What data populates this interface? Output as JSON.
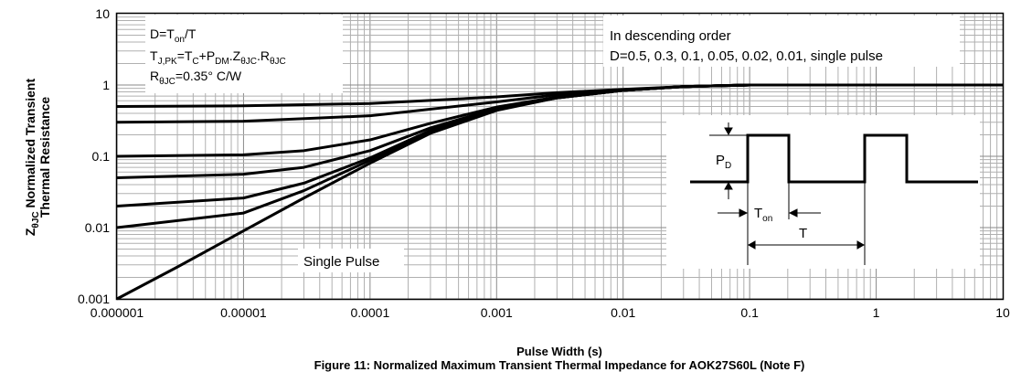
{
  "chart_data": {
    "type": "line",
    "xscale": "log",
    "yscale": "log",
    "xlim": [
      1e-06,
      10
    ],
    "ylim": [
      0.001,
      10
    ],
    "grid": true,
    "x_tick_labels": [
      "0.000001",
      "0.00001",
      "0.0001",
      "0.001",
      "0.01",
      "0.1",
      "1",
      "10"
    ],
    "x_tick_values": [
      1e-06,
      1e-05,
      0.0001,
      0.001,
      0.01,
      0.1,
      1,
      10
    ],
    "y_tick_labels": [
      "0.001",
      "0.01",
      "0.1",
      "1",
      "10"
    ],
    "y_tick_values": [
      0.001,
      0.01,
      0.1,
      1,
      10
    ],
    "ylabel_line1": "Normalized Transient",
    "ylabel_line2": "Thermal Resistance",
    "ylabel_prefix": "Z",
    "ylabel_sub": "θJC",
    "xlabel": "Pulse Width (s)",
    "caption": "Figure 11: Normalized Maximum Transient Thermal Impedance for AOK27S60L (Note F)",
    "series": [
      {
        "duty": 0.5,
        "x": [
          1e-06,
          1e-05,
          0.0001,
          0.001,
          0.003,
          0.01,
          0.03,
          0.1,
          1,
          10
        ],
        "y": [
          0.5,
          0.51,
          0.55,
          0.68,
          0.78,
          0.87,
          0.95,
          1.0,
          1.0,
          1.0
        ]
      },
      {
        "duty": 0.3,
        "x": [
          1e-06,
          1e-05,
          0.0001,
          0.001,
          0.003,
          0.01,
          0.03,
          0.1,
          1,
          10
        ],
        "y": [
          0.3,
          0.31,
          0.37,
          0.58,
          0.73,
          0.85,
          0.95,
          1.0,
          1.0,
          1.0
        ]
      },
      {
        "duty": 0.1,
        "x": [
          1e-06,
          1e-05,
          3e-05,
          0.0001,
          0.0003,
          0.001,
          0.003,
          0.01,
          0.03,
          0.1,
          1,
          10
        ],
        "y": [
          0.1,
          0.105,
          0.12,
          0.17,
          0.29,
          0.49,
          0.68,
          0.84,
          0.95,
          1.0,
          1.0,
          1.0
        ]
      },
      {
        "duty": 0.05,
        "x": [
          1e-06,
          1e-05,
          3e-05,
          0.0001,
          0.0003,
          0.001,
          0.003,
          0.01,
          0.03,
          0.1,
          1,
          10
        ],
        "y": [
          0.05,
          0.056,
          0.07,
          0.12,
          0.25,
          0.47,
          0.67,
          0.84,
          0.95,
          1.0,
          1.0,
          1.0
        ]
      },
      {
        "duty": 0.02,
        "x": [
          1e-06,
          1e-05,
          3e-05,
          0.0001,
          0.0003,
          0.001,
          0.003,
          0.01,
          0.03,
          0.1,
          1,
          10
        ],
        "y": [
          0.02,
          0.026,
          0.042,
          0.095,
          0.23,
          0.46,
          0.66,
          0.84,
          0.95,
          1.0,
          1.0,
          1.0
        ]
      },
      {
        "duty": 0.01,
        "x": [
          1e-06,
          1e-05,
          3e-05,
          0.0001,
          0.0003,
          0.001,
          0.003,
          0.01,
          0.03,
          0.1,
          1,
          10
        ],
        "y": [
          0.01,
          0.016,
          0.033,
          0.088,
          0.22,
          0.45,
          0.66,
          0.84,
          0.95,
          1.0,
          1.0,
          1.0
        ]
      },
      {
        "duty": 0,
        "x": [
          1e-06,
          3e-06,
          1e-05,
          3e-05,
          0.0001,
          0.0003,
          0.001,
          0.003,
          0.01,
          0.03,
          0.1,
          1,
          10
        ],
        "y": [
          0.001,
          0.0028,
          0.009,
          0.026,
          0.08,
          0.21,
          0.44,
          0.66,
          0.84,
          0.95,
          1.0,
          1.0,
          1.0
        ]
      }
    ],
    "annotations": {
      "formula_d": "D=T",
      "formula_d_sub": "on",
      "formula_d_tail": "/T",
      "formula_tj": "T",
      "formula_tj_sub": "J,PK",
      "formula_tj_a": "=T",
      "formula_tj_a_sub": "C",
      "formula_tj_b": "+P",
      "formula_tj_b_sub": "DM",
      "formula_tj_c": ".Z",
      "formula_tj_c_sub": "θJC",
      "formula_tj_d": ".R",
      "formula_tj_d_sub": "θJC",
      "formula_r": "R",
      "formula_r_sub": "θJC",
      "formula_r_tail": "=0.35° C/W",
      "order_title": "In descending order",
      "order_list": "D=0.5, 0.3, 0.1, 0.05, 0.02, 0.01, single pulse",
      "single_pulse": "Single Pulse",
      "pd_label": "P",
      "pd_sub": "D",
      "ton_label": "T",
      "ton_sub": "on",
      "t_label": "T"
    }
  }
}
